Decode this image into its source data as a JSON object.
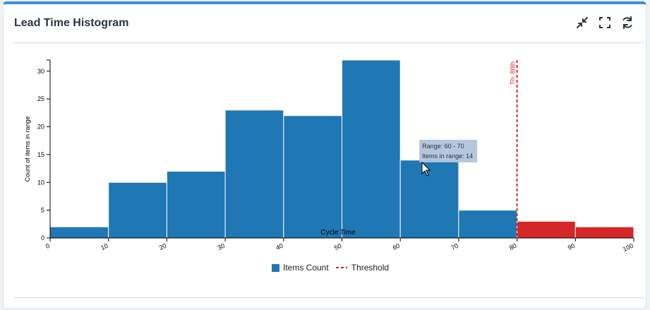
{
  "header": {
    "title": "Lead Time Histogram"
  },
  "tools": [
    {
      "icon": "collapse-icon"
    },
    {
      "icon": "fullscreen-icon"
    },
    {
      "icon": "refresh-icon"
    }
  ],
  "colors": {
    "accent": "#3a8fe0",
    "bar": "#1f77b4",
    "over": "#d62728"
  },
  "chart_data": {
    "type": "bar",
    "xlabel": "Cycle Time",
    "ylabel": "Count of items in range",
    "bins": [
      {
        "from": 0,
        "to": 10,
        "count": 2
      },
      {
        "from": 10,
        "to": 20,
        "count": 10
      },
      {
        "from": 20,
        "to": 30,
        "count": 12
      },
      {
        "from": 30,
        "to": 40,
        "count": 23
      },
      {
        "from": 40,
        "to": 50,
        "count": 22
      },
      {
        "from": 50,
        "to": 60,
        "count": 32
      },
      {
        "from": 60,
        "to": 70,
        "count": 14
      },
      {
        "from": 70,
        "to": 80,
        "count": 5
      },
      {
        "from": 80,
        "to": 90,
        "count": 3
      },
      {
        "from": 90,
        "to": 100,
        "count": 2
      }
    ],
    "xlim": [
      0,
      100
    ],
    "ylim": [
      0,
      32
    ],
    "xticks": [
      "0",
      "10",
      "20",
      "30",
      "40",
      "50",
      "60",
      "70",
      "80",
      "90",
      "100"
    ],
    "yticks": [
      0,
      5,
      10,
      15,
      20,
      25,
      30
    ],
    "threshold": {
      "value": 80,
      "label": "Th: 80th"
    },
    "tooltip": {
      "range": "Range: 60 - 70",
      "items": "Items in range: 14"
    },
    "legend": [
      {
        "label": "Items Count",
        "kind": "box"
      },
      {
        "label": "Threshold",
        "kind": "dash"
      }
    ],
    "legend_position": "bottom"
  }
}
